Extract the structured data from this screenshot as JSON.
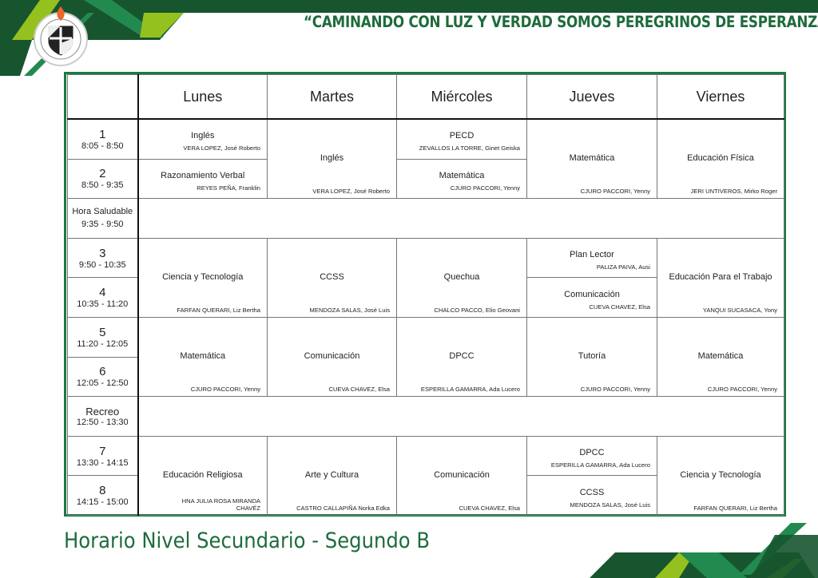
{
  "header": {
    "motto": "“CAMINANDO CON LUZ Y VERDAD SOMOS PEREGRINOS DE ESPERANZA”",
    "logo_text": "I.E.P. SAN MARTIN DE PORRES CUSCO"
  },
  "colors": {
    "dark_green": "#17552f",
    "green": "#228a4f",
    "lime": "#95c11f",
    "title_green": "#1e6b3c"
  },
  "days": [
    "Lunes",
    "Martes",
    "Miércoles",
    "Jueves",
    "Viernes"
  ],
  "periods": [
    {
      "num": "1",
      "time": "8:05 - 8:50"
    },
    {
      "num": "2",
      "time": "8:50 - 9:35"
    },
    {
      "num": "Hora Saludable",
      "time": "9:35 - 9:50"
    },
    {
      "num": "3",
      "time": "9:50 - 10:35"
    },
    {
      "num": "4",
      "time": "10:35 - 11:20"
    },
    {
      "num": "5",
      "time": "11:20 - 12:05"
    },
    {
      "num": "6",
      "time": "12:05 - 12:50"
    },
    {
      "num": "Recreo",
      "time": "12:50 - 13:30"
    },
    {
      "num": "7",
      "time": "13:30 - 14:15"
    },
    {
      "num": "8",
      "time": "14:15 - 15:00"
    }
  ],
  "cells": {
    "p1_lun": {
      "subject": "Inglés",
      "teacher": "VERA LOPEZ, José Roberto"
    },
    "p12_mar": {
      "subject": "Inglés",
      "teacher": "VERA LOPEZ, José Roberto"
    },
    "p1_mie": {
      "subject": "PECD",
      "teacher": "ZEVALLOS LA TORRE,  Ginet Geiska"
    },
    "p12_jue": {
      "subject": "Matemática",
      "teacher": "CJURO PACCORI, Yenny"
    },
    "p12_vie": {
      "subject": "Educación Física",
      "teacher": "JERI UNTIVEROS, Mirko Roger"
    },
    "p2_lun": {
      "subject": "Razonamiento Verbal",
      "teacher": "REYES PEÑA, Franklin"
    },
    "p2_mie": {
      "subject": "Matemática",
      "teacher": "CJURO PACCORI, Yenny"
    },
    "p34_lun": {
      "subject": "Ciencia y Tecnología",
      "teacher": "FARFAN QUERARI, Liz Bertha"
    },
    "p34_mar": {
      "subject": "CCSS",
      "teacher": "MENDOZA SALAS, José Luis"
    },
    "p34_mie": {
      "subject": "Quechua",
      "teacher": "CHALCO PACCO, Elio Geovani"
    },
    "p3_jue": {
      "subject": "Plan Lector",
      "teacher": "PALIZA PAIVA, Ausi"
    },
    "p34_vie": {
      "subject": "Educación Para el Trabajo",
      "teacher": "YANQUI SUCASACA, Yony"
    },
    "p4_jue": {
      "subject": "Comunicación",
      "teacher": "CUEVA CHAVEZ, Elsa"
    },
    "p56_lun": {
      "subject": "Matemática",
      "teacher": "CJURO PACCORI, Yenny"
    },
    "p56_mar": {
      "subject": "Comunicación",
      "teacher": "CUEVA CHAVEZ, Elsa"
    },
    "p56_mie": {
      "subject": "DPCC",
      "teacher": "ESPERILLA GAMARRA, Ada Lucero"
    },
    "p56_jue": {
      "subject": "Tutoría",
      "teacher": "CJURO PACCORI, Yenny"
    },
    "p56_vie": {
      "subject": "Matemática",
      "teacher": "CJURO PACCORI, Yenny"
    },
    "p78_lun": {
      "subject": "Educación Religiosa",
      "teacher": "HNA JULIA ROSA MIRANDA CHAVÉZ"
    },
    "p78_mar": {
      "subject": "Arte y Cultura",
      "teacher": "CASTRO CALLAPIÑA Norka Edka"
    },
    "p78_mie": {
      "subject": "Comunicación",
      "teacher": "CUEVA CHAVEZ, Elsa"
    },
    "p7_jue": {
      "subject": "DPCC",
      "teacher": "ESPERILLA GAMARRA, Ada Lucero"
    },
    "p78_vie": {
      "subject": "Ciencia y Tecnología",
      "teacher": "FARFAN QUERARI, Liz Bertha"
    },
    "p8_jue": {
      "subject": "CCSS",
      "teacher": "MENDOZA SALAS, José Luis"
    }
  },
  "footer": {
    "title": "Horario Nivel Secundario - Segundo B"
  }
}
